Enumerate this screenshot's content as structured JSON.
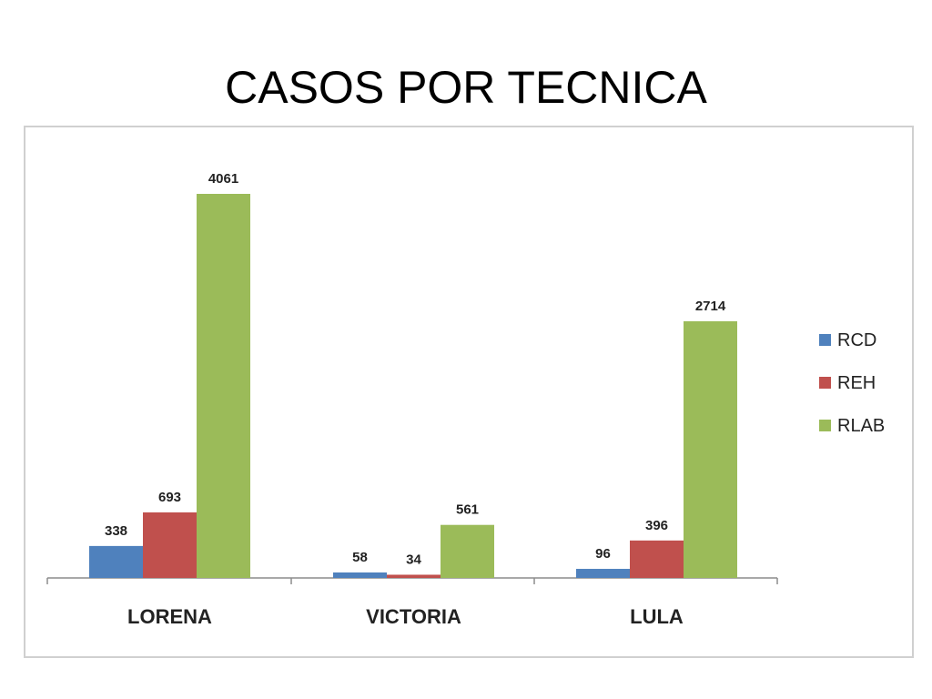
{
  "slide": {
    "title": "CASOS POR TECNICA"
  },
  "chart_data": {
    "type": "bar",
    "categories": [
      "LORENA",
      "VICTORIA",
      "LULA"
    ],
    "series": [
      {
        "name": "RCD",
        "color": "#4f81bd",
        "values": [
          338,
          58,
          96
        ]
      },
      {
        "name": "REH",
        "color": "#c0504d",
        "values": [
          693,
          34,
          396
        ]
      },
      {
        "name": "RLAB",
        "color": "#9bbb59",
        "values": [
          4061,
          561,
          2714
        ]
      }
    ],
    "data_labels": true,
    "legend_position": "right",
    "grid": false,
    "title": "",
    "xlabel": "",
    "ylabel": ""
  }
}
